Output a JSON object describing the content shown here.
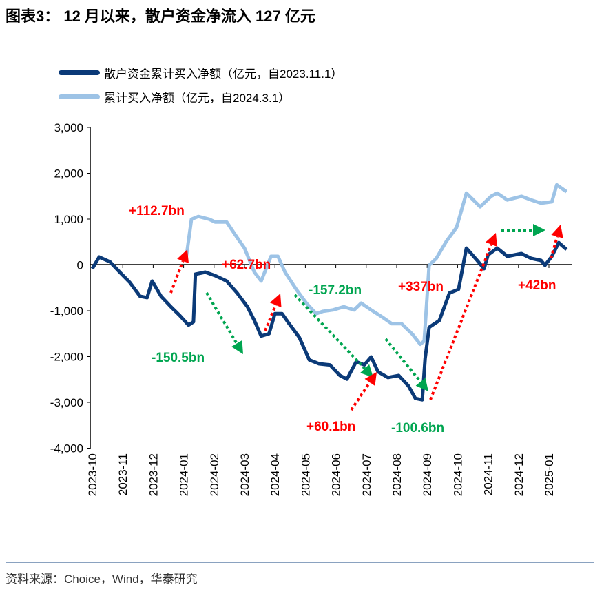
{
  "title": "图表3： 12 月以来，散户资金净流入 127 亿元",
  "source": "资料来源：Choice，Wind，华泰研究",
  "chart_data": {
    "type": "line",
    "ylim": [
      -4000,
      3000
    ],
    "yticks": [
      "3,000",
      "2,000",
      "1,000",
      "0",
      "-1,000",
      "-2,000",
      "-3,000",
      "-4,000"
    ],
    "xticks": [
      "2023-10",
      "2023-11",
      "2023-12",
      "2024-01",
      "2024-02",
      "2024-03",
      "2024-04",
      "2024-05",
      "2024-06",
      "2024-07",
      "2024-08",
      "2024-09",
      "2024-10",
      "2024-11",
      "2024-12",
      "2025-01"
    ],
    "legend_position": "top-left",
    "series": [
      {
        "name": "散户资金累计买入净额（亿元，自2023.11.1）",
        "color": "#0b3a78",
        "points": [
          [
            "2023-10-01",
            -90
          ],
          [
            "2023-10-08",
            165
          ],
          [
            "2023-10-19",
            60
          ],
          [
            "2023-10-29",
            -165
          ],
          [
            "2023-11-08",
            -390
          ],
          [
            "2023-11-18",
            -690
          ],
          [
            "2023-11-25",
            -720
          ],
          [
            "2023-11-30",
            -360
          ],
          [
            "2023-12-09",
            -690
          ],
          [
            "2023-12-19",
            -920
          ],
          [
            "2023-12-28",
            -1110
          ],
          [
            "2024-01-06",
            -1320
          ],
          [
            "2024-01-11",
            -1250
          ],
          [
            "2024-01-13",
            -210
          ],
          [
            "2024-01-23",
            -165
          ],
          [
            "2024-02-02",
            -240
          ],
          [
            "2024-02-13",
            -360
          ],
          [
            "2024-02-23",
            -620
          ],
          [
            "2024-03-04",
            -920
          ],
          [
            "2024-03-11",
            -1220
          ],
          [
            "2024-03-18",
            -1560
          ],
          [
            "2024-03-26",
            -1510
          ],
          [
            "2024-04-01",
            -1070
          ],
          [
            "2024-04-08",
            -1070
          ],
          [
            "2024-04-15",
            -1290
          ],
          [
            "2024-04-25",
            -1590
          ],
          [
            "2024-05-05",
            -2080
          ],
          [
            "2024-05-15",
            -2165
          ],
          [
            "2024-05-26",
            -2190
          ],
          [
            "2024-06-05",
            -2420
          ],
          [
            "2024-06-12",
            -2500
          ],
          [
            "2024-06-21",
            -2120
          ],
          [
            "2024-06-29",
            -2190
          ],
          [
            "2024-07-06",
            -2015
          ],
          [
            "2024-07-13",
            -2340
          ],
          [
            "2024-07-23",
            -2465
          ],
          [
            "2024-08-03",
            -2420
          ],
          [
            "2024-08-13",
            -2650
          ],
          [
            "2024-08-20",
            -2920
          ],
          [
            "2024-08-27",
            -2950
          ],
          [
            "2024-08-30",
            -2045
          ],
          [
            "2024-09-03",
            -1370
          ],
          [
            "2024-09-13",
            -1220
          ],
          [
            "2024-09-23",
            -620
          ],
          [
            "2024-10-02",
            -540
          ],
          [
            "2024-10-10",
            360
          ],
          [
            "2024-10-21",
            90
          ],
          [
            "2024-10-28",
            -90
          ],
          [
            "2024-11-01",
            210
          ],
          [
            "2024-11-10",
            360
          ],
          [
            "2024-11-20",
            180
          ],
          [
            "2024-12-04",
            240
          ],
          [
            "2024-12-14",
            135
          ],
          [
            "2024-12-24",
            90
          ],
          [
            "2024-12-28",
            -15
          ],
          [
            "2025-01-04",
            180
          ],
          [
            "2025-01-11",
            480
          ],
          [
            "2025-01-19",
            330
          ]
        ]
      },
      {
        "name": "累计买入净额（亿元，自2024.3.1）",
        "color": "#9dc3e6",
        "points": [
          [
            "2024-01-03",
            60
          ],
          [
            "2024-01-09",
            990
          ],
          [
            "2024-01-16",
            1050
          ],
          [
            "2024-01-27",
            990
          ],
          [
            "2024-02-02",
            930
          ],
          [
            "2024-02-13",
            930
          ],
          [
            "2024-02-23",
            590
          ],
          [
            "2024-03-01",
            360
          ],
          [
            "2024-03-11",
            -165
          ],
          [
            "2024-03-18",
            -360
          ],
          [
            "2024-03-28",
            180
          ],
          [
            "2024-04-04",
            180
          ],
          [
            "2024-04-11",
            -165
          ],
          [
            "2024-04-22",
            -540
          ],
          [
            "2024-05-02",
            -840
          ],
          [
            "2024-05-12",
            -1070
          ],
          [
            "2024-05-19",
            -1020
          ],
          [
            "2024-05-29",
            -990
          ],
          [
            "2024-06-09",
            -920
          ],
          [
            "2024-06-19",
            -990
          ],
          [
            "2024-06-26",
            -840
          ],
          [
            "2024-07-06",
            -990
          ],
          [
            "2024-07-17",
            -1140
          ],
          [
            "2024-07-27",
            -1290
          ],
          [
            "2024-08-06",
            -1290
          ],
          [
            "2024-08-17",
            -1520
          ],
          [
            "2024-08-25",
            -1740
          ],
          [
            "2024-08-29",
            -1670
          ],
          [
            "2024-09-03",
            -15
          ],
          [
            "2024-09-10",
            135
          ],
          [
            "2024-09-20",
            510
          ],
          [
            "2024-09-30",
            810
          ],
          [
            "2024-10-10",
            1560
          ],
          [
            "2024-10-17",
            1410
          ],
          [
            "2024-10-24",
            1260
          ],
          [
            "2024-11-04",
            1490
          ],
          [
            "2024-11-10",
            1560
          ],
          [
            "2024-11-20",
            1410
          ],
          [
            "2024-12-04",
            1490
          ],
          [
            "2024-12-14",
            1410
          ],
          [
            "2024-12-24",
            1340
          ],
          [
            "2025-01-04",
            1370
          ],
          [
            "2025-01-09",
            1740
          ],
          [
            "2025-01-19",
            1590
          ]
        ]
      }
    ],
    "annotations": [
      {
        "text": "+112.7bn",
        "color": "#ff0000"
      },
      {
        "text": "-150.5bn",
        "color": "#00a550"
      },
      {
        "text": "+62.7bn",
        "color": "#ff0000"
      },
      {
        "text": "-157.2bn",
        "color": "#00a550"
      },
      {
        "text": "+60.1bn",
        "color": "#ff0000"
      },
      {
        "text": "-100.6bn",
        "color": "#00a550"
      },
      {
        "text": "+337bn",
        "color": "#ff0000"
      },
      {
        "text": "+42bn",
        "color": "#ff0000"
      }
    ]
  }
}
